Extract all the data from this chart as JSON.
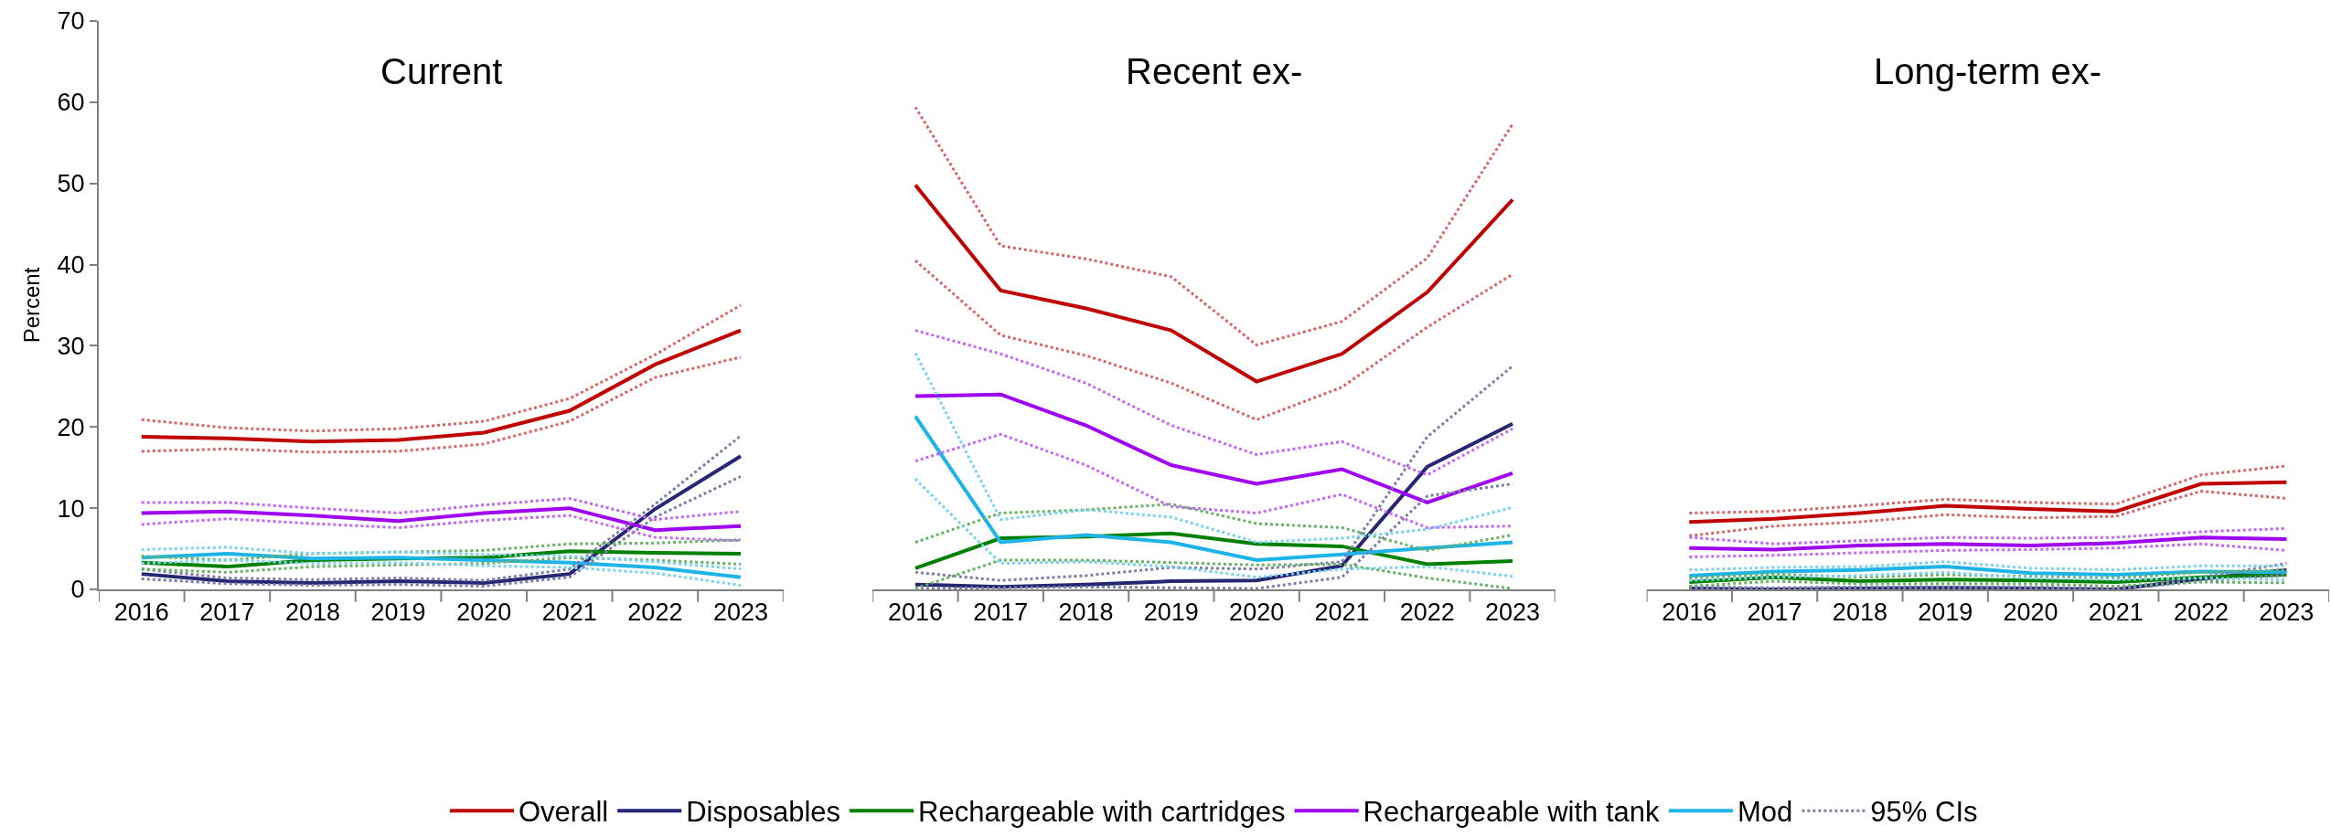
{
  "chart_data": [
    {
      "type": "line",
      "title": "Current",
      "ylabel": "Percent",
      "categories": [
        "2016",
        "2017",
        "2018",
        "2019",
        "2020",
        "2021",
        "2022",
        "2023"
      ],
      "ylim": [
        0,
        70
      ],
      "yticks": [
        0,
        10,
        20,
        30,
        40,
        50,
        60,
        70
      ],
      "legend": "bottom",
      "line_style": "solid",
      "marker": "none",
      "annotations": [
        "95% CIs"
      ],
      "series": [
        {
          "color": "#d96666",
          "line_style": "dotted",
          "values": [
            17.0,
            17.3,
            16.9,
            17.0,
            17.9,
            20.7,
            26.1,
            28.6
          ]
        },
        {
          "color": "#d96666",
          "line_style": "dotted",
          "values": [
            20.9,
            19.9,
            19.5,
            19.8,
            20.7,
            23.5,
            28.9,
            35.0
          ]
        },
        {
          "color": "#7d7dab",
          "line_style": "dotted",
          "values": [
            1.3,
            0.7,
            0.5,
            0.6,
            0.4,
            1.5,
            8.9,
            13.9
          ]
        },
        {
          "color": "#7d7dab",
          "line_style": "dotted",
          "values": [
            2.5,
            1.4,
            1.2,
            1.4,
            1.1,
            2.5,
            10.5,
            18.9
          ]
        },
        {
          "color": "#66b366",
          "line_style": "dotted",
          "values": [
            2.5,
            2.1,
            2.8,
            3.0,
            3.2,
            3.9,
            3.6,
            3.1
          ]
        },
        {
          "color": "#66b366",
          "line_style": "dotted",
          "values": [
            4.1,
            3.6,
            4.4,
            4.6,
            4.8,
            5.6,
            5.7,
            6.1
          ]
        },
        {
          "color": "#c666f6",
          "line_style": "dotted",
          "values": [
            8.0,
            8.7,
            8.1,
            7.6,
            8.5,
            9.1,
            6.4,
            6.0
          ]
        },
        {
          "color": "#c666f6",
          "line_style": "dotted",
          "values": [
            10.7,
            10.7,
            10.0,
            9.4,
            10.4,
            11.2,
            8.6,
            9.6
          ]
        },
        {
          "color": "#79d2f1",
          "line_style": "dotted",
          "values": [
            3.2,
            3.6,
            3.2,
            3.3,
            2.9,
            2.7,
            2.0,
            0.5
          ]
        },
        {
          "color": "#79d2f1",
          "line_style": "dotted",
          "values": [
            4.9,
            5.2,
            4.4,
            4.6,
            4.3,
            4.1,
            3.4,
            2.5
          ]
        },
        {
          "name": "Overall",
          "color": "#c00000",
          "values": [
            18.8,
            18.6,
            18.2,
            18.4,
            19.3,
            22.0,
            27.7,
            31.9
          ]
        },
        {
          "name": "Disposables",
          "color": "#262673",
          "values": [
            1.9,
            1.0,
            0.8,
            1.0,
            0.8,
            1.9,
            9.9,
            16.4
          ]
        },
        {
          "name": "Rechargeable with cartridges",
          "color": "#008000",
          "values": [
            3.3,
            2.8,
            3.6,
            3.8,
            3.9,
            4.7,
            4.5,
            4.4
          ]
        },
        {
          "name": "Rechargeable with tank",
          "color": "#a000f0",
          "values": [
            9.4,
            9.6,
            9.1,
            8.4,
            9.4,
            10.0,
            7.3,
            7.8
          ]
        },
        {
          "name": "Mod",
          "color": "#1fb4e8",
          "values": [
            3.9,
            4.4,
            3.8,
            3.9,
            3.6,
            3.3,
            2.7,
            1.5
          ]
        }
      ]
    },
    {
      "type": "line",
      "title": "Recent ex-",
      "categories": [
        "2016",
        "2017",
        "2018",
        "2019",
        "2020",
        "2021",
        "2022",
        "2023"
      ],
      "ylim": [
        0,
        70
      ],
      "tick_labels": "x",
      "line_style": "solid",
      "marker": "none",
      "series": [
        {
          "color": "#d96666",
          "line_style": "dotted",
          "values": [
            40.5,
            31.3,
            28.8,
            25.4,
            20.9,
            24.9,
            32.3,
            38.8
          ]
        },
        {
          "color": "#d96666",
          "line_style": "dotted",
          "values": [
            59.4,
            42.3,
            40.7,
            38.5,
            30.1,
            33.0,
            40.8,
            57.3
          ]
        },
        {
          "color": "#7d7dab",
          "line_style": "dotted",
          "values": [
            0.1,
            0.2,
            0.3,
            0.2,
            0.1,
            1.5,
            11.5,
            13.0
          ]
        },
        {
          "color": "#7d7dab",
          "line_style": "dotted",
          "values": [
            2.1,
            1.1,
            1.7,
            2.7,
            2.5,
            3.4,
            18.8,
            27.5
          ]
        },
        {
          "color": "#66b366",
          "line_style": "dotted",
          "values": [
            0.1,
            3.6,
            3.6,
            3.3,
            3.0,
            3.1,
            1.4,
            0.1
          ]
        },
        {
          "color": "#66b366",
          "line_style": "dotted",
          "values": [
            5.8,
            9.4,
            9.8,
            10.5,
            8.1,
            7.6,
            4.8,
            6.7
          ]
        },
        {
          "color": "#c666f6",
          "line_style": "dotted",
          "values": [
            15.8,
            19.1,
            15.3,
            10.2,
            9.4,
            11.7,
            7.6,
            7.8
          ]
        },
        {
          "color": "#c666f6",
          "line_style": "dotted",
          "values": [
            31.9,
            29.0,
            25.4,
            20.2,
            16.6,
            18.2,
            14.1,
            19.8
          ]
        },
        {
          "color": "#79d2f1",
          "line_style": "dotted",
          "values": [
            13.6,
            3.2,
            3.4,
            2.8,
            1.5,
            2.5,
            2.8,
            1.6
          ]
        },
        {
          "color": "#79d2f1",
          "line_style": "dotted",
          "values": [
            29.1,
            8.6,
            9.8,
            8.9,
            5.8,
            6.3,
            7.4,
            10.1
          ]
        },
        {
          "color": "#c00000",
          "values": [
            49.8,
            36.8,
            34.6,
            31.9,
            25.6,
            29.0,
            36.6,
            48.0
          ]
        },
        {
          "color": "#262673",
          "values": [
            0.6,
            0.3,
            0.6,
            1.0,
            1.1,
            2.9,
            15.1,
            20.4
          ]
        },
        {
          "color": "#008000",
          "values": [
            2.6,
            6.3,
            6.5,
            6.9,
            5.6,
            5.3,
            3.1,
            3.5
          ]
        },
        {
          "color": "#a000f0",
          "values": [
            23.8,
            24.0,
            20.2,
            15.3,
            13.0,
            14.8,
            10.7,
            14.3
          ]
        },
        {
          "color": "#1fb4e8",
          "values": [
            21.3,
            5.8,
            6.7,
            5.8,
            3.6,
            4.3,
            5.1,
            5.8
          ]
        }
      ]
    },
    {
      "type": "line",
      "title": "Long-term ex-",
      "categories": [
        "2016",
        "2017",
        "2018",
        "2019",
        "2020",
        "2021",
        "2022",
        "2023"
      ],
      "ylim": [
        0,
        70
      ],
      "tick_labels": "x",
      "line_style": "solid",
      "marker": "none",
      "series": [
        {
          "color": "#d96666",
          "line_style": "dotted",
          "values": [
            6.6,
            7.8,
            8.3,
            9.2,
            8.8,
            9.0,
            12.1,
            11.2
          ]
        },
        {
          "color": "#d96666",
          "line_style": "dotted",
          "values": [
            9.4,
            9.6,
            10.3,
            11.1,
            10.7,
            10.5,
            14.1,
            15.2
          ]
        },
        {
          "color": "#7d7dab",
          "line_style": "dotted",
          "values": [
            0.0,
            0.0,
            0.0,
            0.0,
            0.0,
            0.0,
            1.0,
            1.8
          ]
        },
        {
          "color": "#7d7dab",
          "line_style": "dotted",
          "values": [
            0.3,
            0.2,
            0.3,
            0.3,
            0.3,
            0.1,
            1.5,
            3.2
          ]
        },
        {
          "color": "#66b366",
          "line_style": "dotted",
          "values": [
            0.4,
            1.0,
            0.7,
            0.7,
            0.7,
            0.4,
            0.9,
            0.8
          ]
        },
        {
          "color": "#66b366",
          "line_style": "dotted",
          "values": [
            1.4,
            1.9,
            1.5,
            1.8,
            1.6,
            1.4,
            2.1,
            2.4
          ]
        },
        {
          "color": "#c666f6",
          "line_style": "dotted",
          "values": [
            4.0,
            4.2,
            4.5,
            4.8,
            4.9,
            5.1,
            5.6,
            4.8
          ]
        },
        {
          "color": "#c666f6",
          "line_style": "dotted",
          "values": [
            6.4,
            5.6,
            6.0,
            6.4,
            6.3,
            6.4,
            7.1,
            7.5
          ]
        },
        {
          "color": "#79d2f1",
          "line_style": "dotted",
          "values": [
            1.1,
            1.5,
            1.7,
            2.1,
            1.4,
            1.2,
            1.4,
            1.2
          ]
        },
        {
          "color": "#79d2f1",
          "line_style": "dotted",
          "values": [
            2.4,
            2.7,
            2.8,
            3.4,
            2.6,
            2.4,
            2.9,
            2.9
          ]
        },
        {
          "color": "#c00000",
          "values": [
            8.3,
            8.7,
            9.4,
            10.3,
            9.9,
            9.6,
            13.0,
            13.2
          ]
        },
        {
          "color": "#262673",
          "values": [
            0.1,
            0.0,
            0.1,
            0.2,
            0.1,
            0.0,
            1.3,
            2.4
          ]
        },
        {
          "color": "#008000",
          "values": [
            0.9,
            1.5,
            1.0,
            1.2,
            1.1,
            0.9,
            1.5,
            1.8
          ]
        },
        {
          "color": "#a000f0",
          "values": [
            5.1,
            4.9,
            5.4,
            5.6,
            5.4,
            5.7,
            6.4,
            6.2
          ]
        },
        {
          "color": "#1fb4e8",
          "values": [
            1.7,
            2.2,
            2.4,
            2.8,
            2.0,
            1.8,
            2.2,
            2.1
          ]
        }
      ]
    }
  ]
}
